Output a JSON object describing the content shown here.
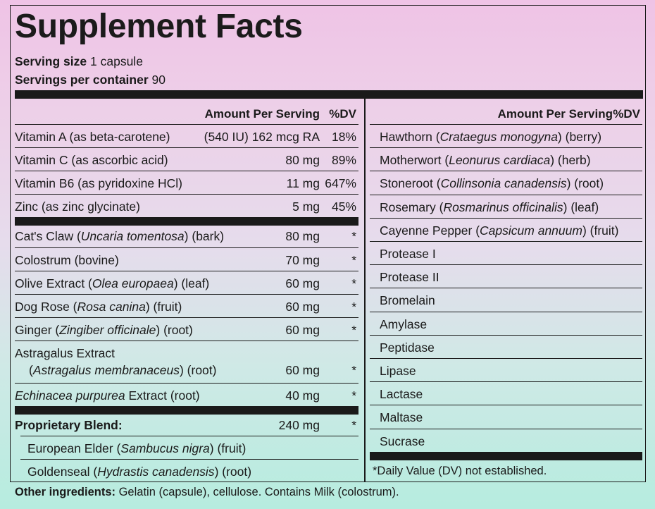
{
  "title": "Supplement Facts",
  "serving_size_label": "Serving size",
  "serving_size_value": "1 capsule",
  "servings_label": "Servings per container",
  "servings_value": "90",
  "header": {
    "amount": "Amount Per Serving",
    "dv": "%DV"
  },
  "left_rows": [
    {
      "pre": "Vitamin A (as beta-carotene)",
      "amount": "(540 IU) 162 mcg RA",
      "dv": "18%"
    },
    {
      "pre": "Vitamin C (as ascorbic acid)",
      "amount": "80 mg",
      "dv": "89%"
    },
    {
      "pre": "Vitamin B6 (as pyridoxine HCl)",
      "amount": "11 mg",
      "dv": "647%"
    },
    {
      "pre": "Zinc (as zinc glycinate)",
      "amount": "5 mg",
      "dv": "45%"
    },
    {
      "pre": "Cat's Claw (",
      "it": "Uncaria tomentosa",
      "post": ") (bark)",
      "amount": "80 mg",
      "dv": "*"
    },
    {
      "pre": "Colostrum (bovine)",
      "amount": "70 mg",
      "dv": "*"
    },
    {
      "pre": "Olive Extract (",
      "it": "Olea europaea",
      "post": ") (leaf)",
      "amount": "60 mg",
      "dv": "*"
    },
    {
      "pre": "Dog Rose (",
      "it": "Rosa canina",
      "post": ") (fruit)",
      "amount": "60 mg",
      "dv": "*"
    },
    {
      "pre": "Ginger (",
      "it": "Zingiber officinale",
      "post": ") (root)",
      "amount": "60 mg",
      "dv": "*"
    },
    {
      "pre": "Astragalus Extract",
      "line2_pre": "(",
      "line2_it": "Astragalus membranaceus",
      "line2_post": ") (root)",
      "amount": "60 mg",
      "dv": "*"
    },
    {
      "pre": "",
      "it": "Echinacea purpurea",
      "post": " Extract (root)",
      "amount": "40 mg",
      "dv": "*"
    }
  ],
  "blend": {
    "label": "Proprietary Blend:",
    "amount": "240 mg",
    "dv": "*"
  },
  "blend_items": [
    {
      "pre": "European Elder (",
      "it": "Sambucus nigra",
      "post": ") (fruit)"
    },
    {
      "pre": "Goldenseal (",
      "it": "Hydrastis canadensis",
      "post": ") (root)"
    }
  ],
  "right_rows": [
    {
      "pre": "Hawthorn (",
      "it": "Crataegus monogyna",
      "post": ") (berry)"
    },
    {
      "pre": "Motherwort (",
      "it": "Leonurus cardiaca",
      "post": ") (herb)"
    },
    {
      "pre": "Stoneroot (",
      "it": "Collinsonia canadensis",
      "post": ") (root)"
    },
    {
      "pre": "Rosemary (",
      "it": "Rosmarinus officinalis",
      "post": ") (leaf)"
    },
    {
      "pre": "Cayenne Pepper (",
      "it": "Capsicum annuum",
      "post": ") (fruit)"
    },
    {
      "pre": "Protease I"
    },
    {
      "pre": "Protease II"
    },
    {
      "pre": "Bromelain"
    },
    {
      "pre": "Amylase"
    },
    {
      "pre": "Peptidase"
    },
    {
      "pre": "Lipase"
    },
    {
      "pre": "Lactase"
    },
    {
      "pre": "Maltase"
    },
    {
      "pre": "Sucrase"
    }
  ],
  "footnote": "*Daily Value (DV) not established.",
  "other_label": "Other ingredients:",
  "other_text": " Gelatin (capsule), cellulose. Contains Milk (colostrum)."
}
